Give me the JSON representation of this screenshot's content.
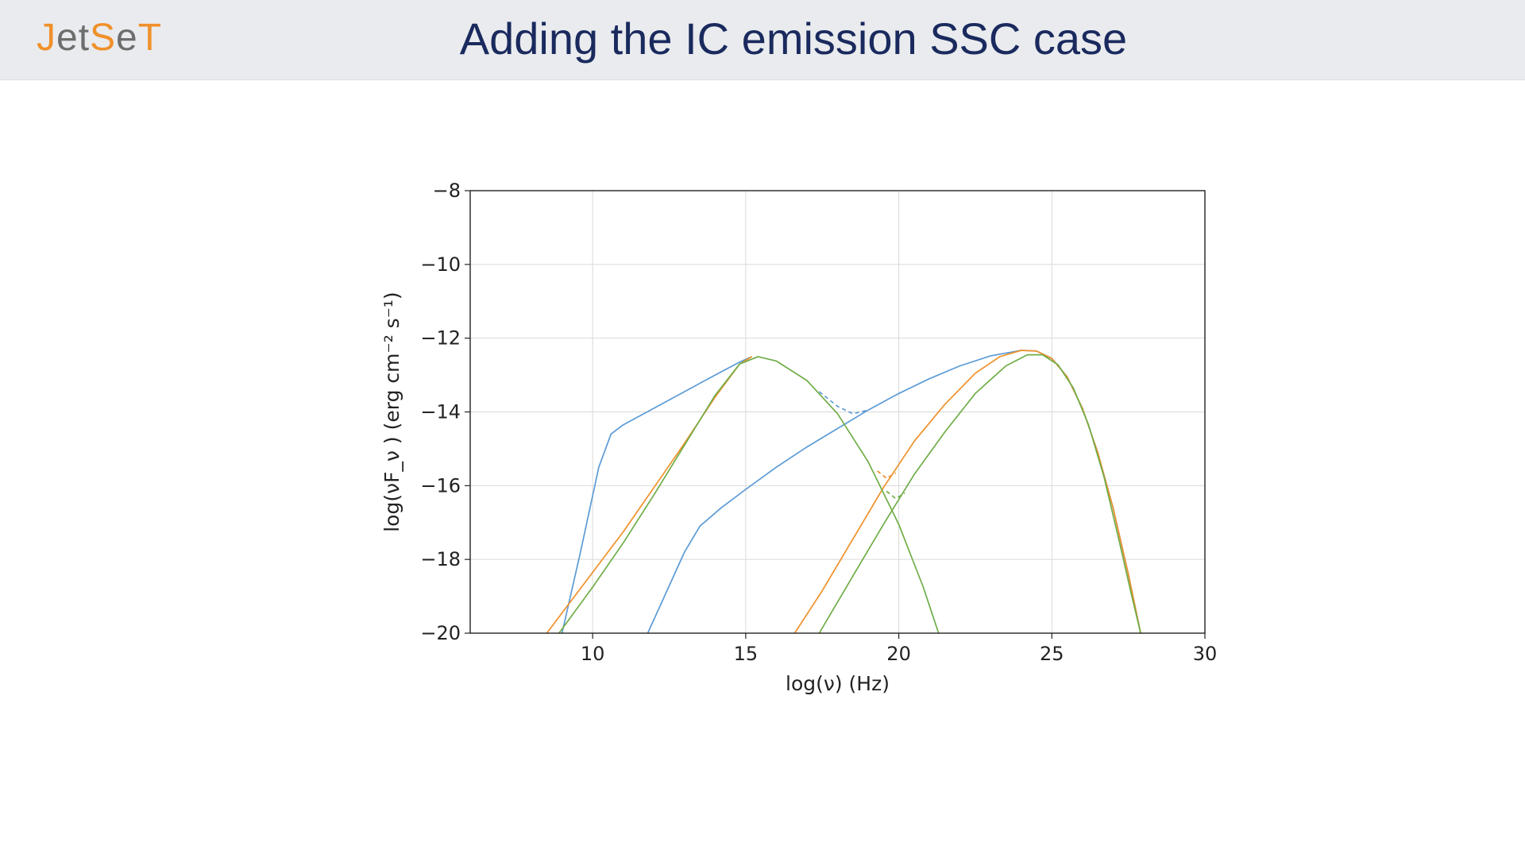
{
  "slide": {
    "title": "Adding the IC emission SSC case",
    "title_color": "#1a2a5e",
    "logo": {
      "parts": [
        "J",
        "et",
        "S",
        "e",
        "T"
      ]
    },
    "logo_colors": {
      "orange": "#f0902a",
      "grey": "#6d6d6d"
    }
  },
  "chart_data": {
    "type": "line",
    "title": "",
    "xlabel": "log(ν)  (Hz)",
    "ylabel": "log(νF_ν )  (erg cm⁻² s⁻¹)",
    "xlim": [
      6,
      30
    ],
    "ylim": [
      -20,
      -8
    ],
    "xticks": [
      10,
      15,
      20,
      25,
      30
    ],
    "xtick_labels": [
      "10",
      "15",
      "20",
      "25",
      "30"
    ],
    "yticks": [
      -8,
      -10,
      -12,
      -14,
      -16,
      -18,
      -20
    ],
    "ytick_labels": [
      "−8",
      "−10",
      "−12",
      "−14",
      "−16",
      "−18",
      "−20"
    ],
    "grid": true,
    "legend": "none",
    "series": [
      {
        "color": "#5b9bd5",
        "style": "solid",
        "x": [
          9.0,
          9.6,
          10.2,
          10.6,
          11.0,
          12.0,
          13.0,
          14.0,
          14.8,
          15.2
        ],
        "y": [
          -20.0,
          -17.8,
          -15.5,
          -14.6,
          -14.35,
          -13.9,
          -13.45,
          -13.0,
          -12.65,
          -12.5
        ]
      },
      {
        "color": "#5b9bd5",
        "style": "solid",
        "x": [
          11.8,
          12.4,
          13.0,
          13.5,
          14.2,
          15.0,
          16.0,
          17.0,
          18.0,
          19.0,
          20.0,
          21.0,
          22.0,
          23.0,
          24.0,
          24.5,
          25.0,
          25.5,
          26.0,
          26.5,
          27.0,
          27.5,
          27.9
        ],
        "y": [
          -20.0,
          -18.9,
          -17.8,
          -17.1,
          -16.6,
          -16.1,
          -15.5,
          -14.95,
          -14.45,
          -13.95,
          -13.5,
          -13.1,
          -12.75,
          -12.48,
          -12.33,
          -12.35,
          -12.55,
          -13.05,
          -13.9,
          -15.1,
          -16.6,
          -18.4,
          -20.0
        ]
      },
      {
        "color": "#5b9bd5",
        "style": "dashed",
        "x": [
          17.4,
          18.0,
          18.5,
          19.0
        ],
        "y": [
          -13.45,
          -13.85,
          -14.05,
          -13.95
        ]
      },
      {
        "color": "#f0902a",
        "style": "solid",
        "x": [
          8.5,
          10.0,
          11.0,
          12.0,
          13.0,
          14.0,
          14.8,
          15.2
        ],
        "y": [
          -20.0,
          -18.35,
          -17.25,
          -16.05,
          -14.85,
          -13.6,
          -12.7,
          -12.5
        ]
      },
      {
        "color": "#f0902a",
        "style": "solid",
        "x": [
          16.6,
          17.5,
          18.5,
          19.5,
          20.5,
          21.5,
          22.5,
          23.3,
          24.0,
          24.5,
          25.0,
          25.5,
          26.0,
          26.5,
          27.0,
          27.5,
          27.9
        ],
        "y": [
          -20.0,
          -18.85,
          -17.45,
          -16.05,
          -14.8,
          -13.8,
          -12.95,
          -12.5,
          -12.33,
          -12.35,
          -12.55,
          -13.05,
          -13.9,
          -15.1,
          -16.6,
          -18.4,
          -20.0
        ]
      },
      {
        "color": "#f0902a",
        "style": "dashed",
        "x": [
          19.3,
          19.6,
          19.9
        ],
        "y": [
          -15.6,
          -15.8,
          -15.65
        ]
      },
      {
        "color": "#70ad47",
        "style": "solid",
        "x": [
          8.9,
          10.0,
          11.0,
          12.0,
          13.0,
          14.0,
          14.8,
          15.4,
          16.0,
          17.0,
          18.0,
          19.0,
          20.0,
          20.8,
          21.3
        ],
        "y": [
          -20.0,
          -18.75,
          -17.55,
          -16.25,
          -14.9,
          -13.55,
          -12.7,
          -12.5,
          -12.62,
          -13.15,
          -14.05,
          -15.35,
          -17.05,
          -18.75,
          -20.0
        ]
      },
      {
        "color": "#70ad47",
        "style": "solid",
        "x": [
          17.4,
          18.5,
          19.5,
          20.5,
          21.5,
          22.5,
          23.5,
          24.2,
          24.7,
          25.2,
          25.7,
          26.2,
          26.7,
          27.2,
          27.6,
          27.9
        ],
        "y": [
          -20.0,
          -18.45,
          -17.05,
          -15.7,
          -14.55,
          -13.5,
          -12.75,
          -12.45,
          -12.45,
          -12.72,
          -13.35,
          -14.35,
          -15.75,
          -17.5,
          -18.95,
          -20.0
        ]
      },
      {
        "color": "#70ad47",
        "style": "dashed",
        "x": [
          19.6,
          19.9,
          20.2
        ],
        "y": [
          -16.15,
          -16.35,
          -16.2
        ]
      }
    ]
  }
}
